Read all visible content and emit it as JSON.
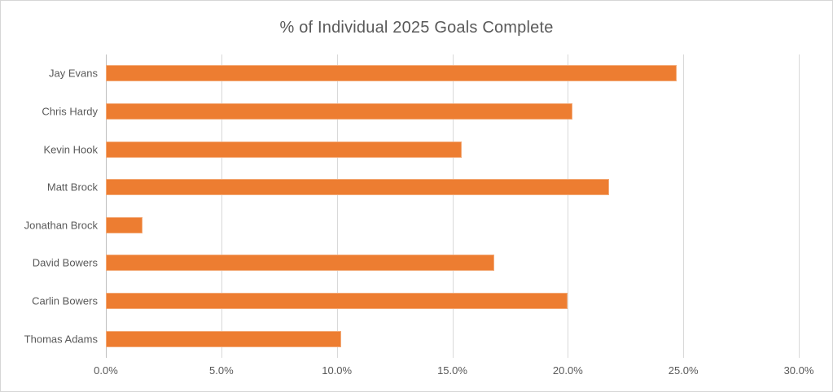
{
  "chart_data": {
    "type": "bar",
    "orientation": "horizontal",
    "title": "% of Individual 2025 Goals Complete",
    "categories": [
      "Jay Evans",
      "Chris Hardy",
      "Kevin Hook",
      "Matt Brock",
      "Jonathan Brock",
      "David Bowers",
      "Carlin Bowers",
      "Thomas Adams"
    ],
    "values": [
      24.7,
      20.2,
      15.4,
      21.8,
      1.6,
      16.8,
      20.0,
      10.2
    ],
    "xlabel": "",
    "ylabel": "",
    "xlim": [
      0,
      30
    ],
    "x_ticks": [
      {
        "value": 0,
        "label": "0.0%"
      },
      {
        "value": 5,
        "label": "5.0%"
      },
      {
        "value": 10,
        "label": "10.0%"
      },
      {
        "value": 15,
        "label": "15.0%"
      },
      {
        "value": 20,
        "label": "20.0%"
      },
      {
        "value": 25,
        "label": "25.0%"
      },
      {
        "value": 30,
        "label": "30.0%"
      }
    ],
    "grid": "vertical-only",
    "legend": "none",
    "colors": {
      "bar": "#ed7d31",
      "text": "#595959",
      "gridline": "#d9d9d9",
      "axis_line": "#bfbfbf",
      "frame_border": "#d6d6d6",
      "background": "#ffffff"
    }
  }
}
